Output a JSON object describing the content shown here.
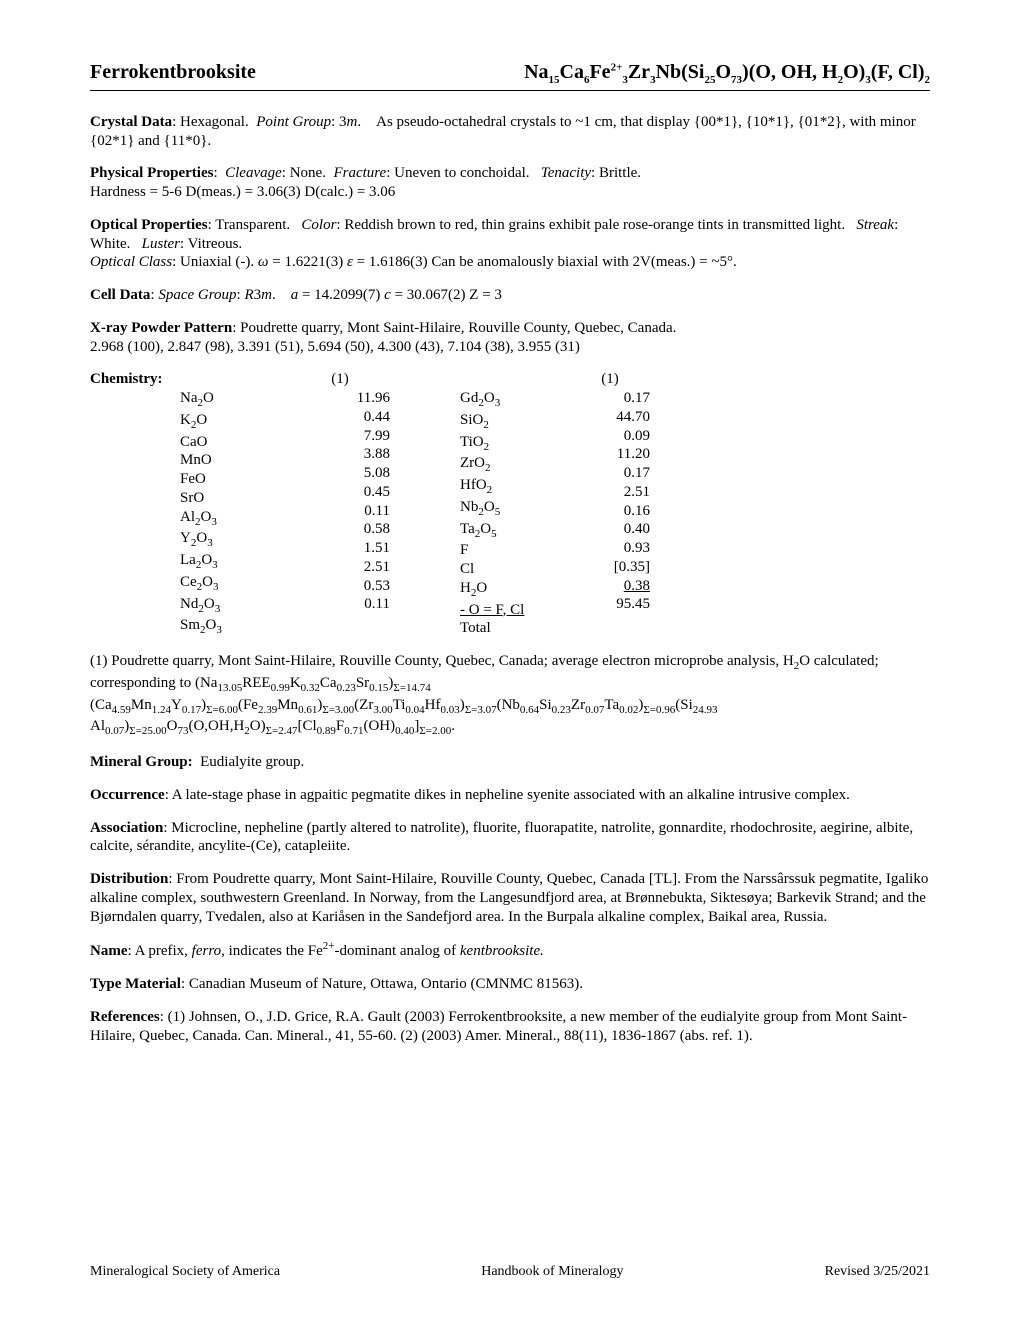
{
  "header": {
    "mineral_name": "Ferrokentbrooksite",
    "formula_html": "Na<sub>15</sub>Ca<sub>6</sub>Fe<sup>2+</sup><sub>3</sub>Zr<sub>3</sub>Nb(Si<sub>25</sub>O<sub>73</sub>)(O, OH, H<sub>2</sub>O)<sub>3</sub>(F, Cl)<sub>2</sub>"
  },
  "crystal_data": {
    "label": "Crystal Data",
    "system": "Hexagonal.",
    "point_group_label": "Point Group",
    "point_group_html": "3<i>m</i>.",
    "body": "As pseudo-octahedral crystals to ~1 cm, that display {00*1}, {10*1}, {01*2}, with minor {02*1} and {11*0}."
  },
  "physical": {
    "label": "Physical Properties",
    "cleavage_label": "Cleavage",
    "cleavage": "None.",
    "fracture_label": "Fracture",
    "fracture": "Uneven to conchoidal.",
    "tenacity_label": "Tenacity",
    "tenacity": "Brittle.",
    "line2": "Hardness = 5-6    D(meas.) = 3.06(3)    D(calc.) = 3.06"
  },
  "optical": {
    "label": "Optical Properties",
    "transparency": "Transparent.",
    "color_label": "Color",
    "color": "Reddish brown to red, thin grains exhibit pale rose-orange tints in transmitted light.",
    "streak_label": "Streak",
    "streak": "White.",
    "luster_label": "Luster",
    "luster": "Vitreous.",
    "class_label": "Optical Class",
    "class_html": "Uniaxial (-).    <i>ω</i> = 1.6221(3)    <i>ε</i> = 1.6186(3)     Can be anomalously biaxial with 2V(meas.) = ~5°."
  },
  "cell": {
    "label": "Cell Data",
    "sg_label": "Space Group",
    "sg_html": "<i>R</i>3<i>m</i>.",
    "params_html": "<i>a</i> = 14.2099(7)    <i>c</i> = 30.067(2)     Z = 3"
  },
  "xray": {
    "label": "X-ray Powder Pattern",
    "locality": "Poudrette quarry, Mont Saint-Hilaire, Rouville County, Quebec, Canada.",
    "pattern": "2.968 (100), 2.847 (98), 3.391 (51), 5.694 (50), 4.300 (43), 7.104 (38), 3.955 (31)"
  },
  "chemistry": {
    "label": "Chemistry",
    "col_header": "(1)",
    "left": [
      {
        "ox_html": "Na<sub>2</sub>O",
        "val": "11.96"
      },
      {
        "ox_html": "K<sub>2</sub>O",
        "val": "0.44"
      },
      {
        "ox_html": "CaO",
        "val": "7.99"
      },
      {
        "ox_html": "MnO",
        "val": "3.88"
      },
      {
        "ox_html": "FeO",
        "val": "5.08"
      },
      {
        "ox_html": "SrO",
        "val": "0.45"
      },
      {
        "ox_html": "Al<sub>2</sub>O<sub>3</sub>",
        "val": "0.11"
      },
      {
        "ox_html": "Y<sub>2</sub>O<sub>3</sub>",
        "val": "0.58"
      },
      {
        "ox_html": "La<sub>2</sub>O<sub>3</sub>",
        "val": "1.51"
      },
      {
        "ox_html": "Ce<sub>2</sub>O<sub>3</sub>",
        "val": "2.51"
      },
      {
        "ox_html": "Nd<sub>2</sub>O<sub>3</sub>",
        "val": "0.53"
      },
      {
        "ox_html": "Sm<sub>2</sub>O<sub>3</sub>",
        "val": "0.11"
      }
    ],
    "right": [
      {
        "ox_html": "Gd<sub>2</sub>O<sub>3</sub>",
        "val": "0.17"
      },
      {
        "ox_html": "SiO<sub>2</sub>",
        "val": "44.70"
      },
      {
        "ox_html": "TiO<sub>2</sub>",
        "val": "0.09"
      },
      {
        "ox_html": "ZrO<sub>2</sub>",
        "val": "11.20"
      },
      {
        "ox_html": "HfO<sub>2</sub>",
        "val": "0.17"
      },
      {
        "ox_html": "Nb<sub>2</sub>O<sub>5</sub>",
        "val": "2.51"
      },
      {
        "ox_html": "Ta<sub>2</sub>O<sub>5</sub>",
        "val": "0.16"
      },
      {
        "ox_html": "F",
        "val": "0.40"
      },
      {
        "ox_html": "Cl",
        "val": "0.93"
      },
      {
        "ox_html": "H<sub>2</sub>O",
        "val": "[0.35]"
      },
      {
        "ox_html": "<u>- O = F, Cl</u>",
        "val": "0.38",
        "underline": true
      },
      {
        "ox_html": "Total",
        "val": "95.45"
      }
    ],
    "note_html": "(1) Poudrette quarry, Mont Saint-Hilaire, Rouville County, Quebec, Canada; average electron microprobe analysis, H<sub>2</sub>O calculated; corresponding to (Na<sub>13.05</sub>REE<sub>0.99</sub>K<sub>0.32</sub>Ca<sub>0.23</sub>Sr<sub>0.15</sub>)<sub>Σ=14.74</sub> (Ca<sub>4.59</sub>Mn<sub>1.24</sub>Y<sub>0.17</sub>)<sub>Σ=6.00</sub>(Fe<sub>2.39</sub>Mn<sub>0.61</sub>)<sub>Σ=3.00</sub>(Zr<sub>3.00</sub>Ti<sub>0.04</sub>Hf<sub>0.03</sub>)<sub>Σ=3.07</sub>(Nb<sub>0.64</sub>Si<sub>0.23</sub>Zr<sub>0.07</sub>Ta<sub>0.02</sub>)<sub>Σ=0.96</sub>(Si<sub>24.93</sub> Al<sub>0.07</sub>)<sub>Σ=25.00</sub>O<sub>73</sub>(O,OH,H<sub>2</sub>O)<sub>Σ=2.47</sub>[Cl<sub>0.89</sub>F<sub>0.71</sub>(OH)<sub>0.40</sub>]<sub>Σ=2.00</sub>."
  },
  "mineral_group": {
    "label": "Mineral Group:",
    "text": "Eudialyite group."
  },
  "occurrence": {
    "label": "Occurrence",
    "text": "A late-stage phase in agpaitic pegmatite dikes in nepheline syenite associated with an alkaline intrusive complex."
  },
  "association": {
    "label": "Association",
    "text": "Microcline, nepheline (partly altered to natrolite), fluorite, fluorapatite, natrolite, gonnardite, rhodochrosite, aegirine, albite, calcite, sérandite, ancylite-(Ce), catapleiite."
  },
  "distribution": {
    "label": "Distribution",
    "text": "From Poudrette quarry, Mont Saint-Hilaire, Rouville County, Quebec, Canada [TL]. From the Narssârssuk pegmatite, Igaliko alkaline complex, southwestern Greenland. In Norway, from the Langesundfjord area, at Brønnebukta, Siktesøya; Barkevik Strand; and the Bjørndalen quarry, Tvedalen, also at Kariåsen in the Sandefjord area. In the Burpala alkaline complex, Baikal area, Russia."
  },
  "name": {
    "label": "Name",
    "text_html": "A prefix, <i>ferro</i>, indicates the Fe<sup>2+</sup>-dominant analog of <i>kentbrooksite.</i>"
  },
  "type_material": {
    "label": "Type Material",
    "text": "Canadian Museum of Nature, Ottawa, Ontario (CMNMC 81563)."
  },
  "references": {
    "label": "References",
    "text": "(1) Johnsen, O., J.D. Grice, R.A. Gault (2003) Ferrokentbrooksite, a new member of the eudialyite group from Mont Saint-Hilaire, Quebec, Canada. Can. Mineral., 41, 55-60.  (2) (2003) Amer. Mineral., 88(11), 1836-1867 (abs. ref. 1)."
  },
  "footer": {
    "left": "Mineralogical Society of America",
    "center": "Handbook of Mineralogy",
    "right": "Revised 3/25/2021"
  }
}
